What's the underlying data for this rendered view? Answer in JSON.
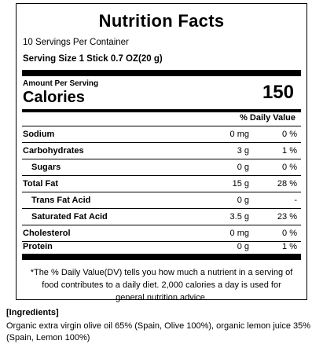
{
  "label": {
    "title": "Nutrition Facts",
    "servings_per_container": "10 Servings Per Container",
    "serving_size": "Serving Size 1 Stick  0.7 OZ(20 g)",
    "amount_per_serving": "Amount Per Serving",
    "calories_label": "Calories",
    "calories_value": "150",
    "daily_value_header": "% Daily Value",
    "nutrients": [
      {
        "name": "Sodium",
        "amount": "0 mg",
        "dv": "0 %"
      },
      {
        "name": "Carbohydrates",
        "amount": "3 g",
        "dv": "1 %"
      },
      {
        "name": "Sugars",
        "amount": "0 g",
        "dv": "0 %"
      },
      {
        "name": "Total Fat",
        "amount": "15 g",
        "dv": "28 %"
      },
      {
        "name": "Trans Fat Acid",
        "amount": "0 g",
        "dv": "-"
      },
      {
        "name": "Saturated Fat Acid",
        "amount": "3.5 g",
        "dv": "23 %"
      },
      {
        "name": "Cholesterol",
        "amount": "0 mg",
        "dv": "0 %"
      },
      {
        "name": "Protein",
        "amount": "0 g",
        "dv": "1 %"
      }
    ],
    "footnote": "*The % Daily Value(DV) tells you how much a nutrient in a serving of food contributes to a daily diet. 2,000 calories a day is used for general nutrition advice."
  },
  "ingredients": {
    "title": "[Ingredients]",
    "text": "Organic extra virgin olive oil 65% (Spain, Olive 100%), organic lemon juice 35% (Spain, Lemon 100%)"
  }
}
